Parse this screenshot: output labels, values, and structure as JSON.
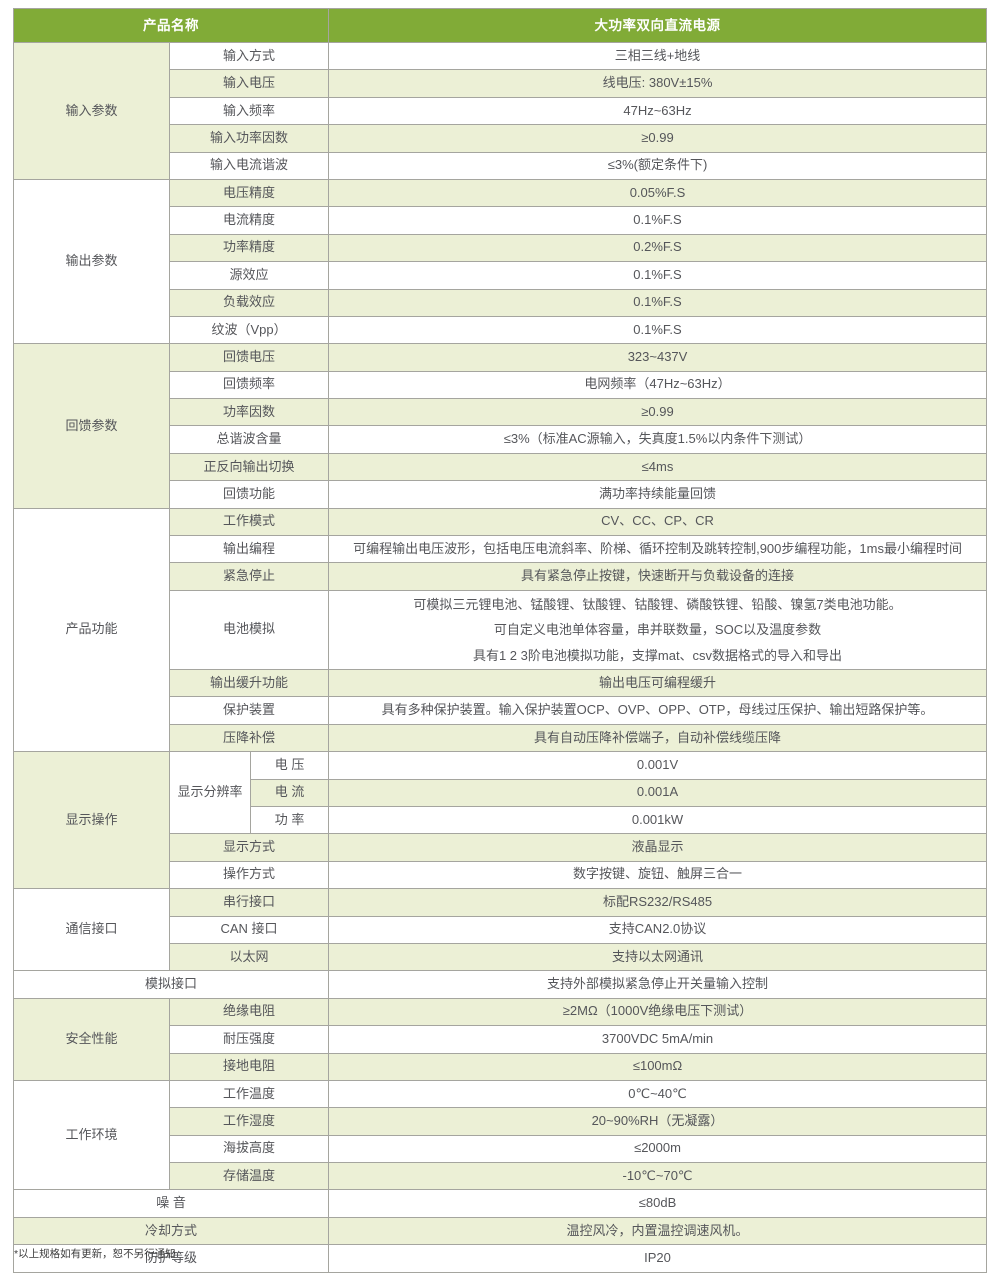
{
  "colors": {
    "header_bg": "#81AB37",
    "row_green": "#ECF0D6",
    "border": "#A5A59F",
    "text": "#55565A",
    "header_text": "#FFFFFF"
  },
  "footnote": "*以上规格如有更新，恕不另行通知",
  "table": {
    "header": {
      "name_label": "产品名称",
      "product_name": "大功率双向直流电源"
    },
    "rows": [
      {
        "group": "输入参数",
        "groupSpan": 5,
        "groupBg": "g",
        "label": "输入方式",
        "value": "三相三线+地线",
        "bg": "w"
      },
      {
        "label": "输入电压",
        "value": "线电压: 380V±15%",
        "bg": "g"
      },
      {
        "label": "输入频率",
        "value": "47Hz~63Hz",
        "bg": "w"
      },
      {
        "label": "输入功率因数",
        "value": "≥0.99",
        "bg": "g"
      },
      {
        "label": "输入电流谐波",
        "value": "≤3%(额定条件下)",
        "bg": "w"
      },
      {
        "group": "输出参数",
        "groupSpan": 6,
        "groupBg": "w",
        "label": "电压精度",
        "value": "0.05%F.S",
        "bg": "g"
      },
      {
        "label": "电流精度",
        "value": "0.1%F.S",
        "bg": "w"
      },
      {
        "label": "功率精度",
        "value": "0.2%F.S",
        "bg": "g"
      },
      {
        "label": "源效应",
        "value": "0.1%F.S",
        "bg": "w"
      },
      {
        "label": "负载效应",
        "value": "0.1%F.S",
        "bg": "g"
      },
      {
        "label": "纹波（Vpp）",
        "value": "0.1%F.S",
        "bg": "w"
      },
      {
        "group": "回馈参数",
        "groupSpan": 6,
        "groupBg": "g",
        "label": "回馈电压",
        "value": "323~437V",
        "bg": "g"
      },
      {
        "label": "回馈频率",
        "value": "电网频率（47Hz~63Hz）",
        "bg": "w"
      },
      {
        "label": "功率因数",
        "value": "≥0.99",
        "bg": "g"
      },
      {
        "label": "总谐波含量",
        "value": "≤3%（标准AC源输入，失真度1.5%以内条件下测试）",
        "bg": "w"
      },
      {
        "label": "正反向输出切换",
        "value": "≤4ms",
        "bg": "g"
      },
      {
        "label": "回馈功能",
        "value": "满功率持续能量回馈",
        "bg": "w"
      },
      {
        "group": "产品功能",
        "groupSpan": 7,
        "groupBg": "w",
        "label": "工作模式",
        "value": "CV、CC、CP、CR",
        "bg": "g"
      },
      {
        "label": "输出编程",
        "value": "可编程输出电压波形，包括电压电流斜率、阶梯、循环控制及跳转控制,900步编程功能，1ms最小编程时间",
        "bg": "w"
      },
      {
        "label": "紧急停止",
        "value": "具有紧急停止按键，快速断开与负载设备的连接",
        "bg": "g"
      },
      {
        "label": "电池模拟",
        "value": [
          "可模拟三元锂电池、锰酸锂、钛酸锂、钴酸锂、磷酸铁锂、铅酸、镍氢7类电池功能。",
          "可自定义电池单体容量，串并联数量，SOC以及温度参数",
          "具有1 2 3阶电池模拟功能，支撑mat、csv数据格式的导入和导出"
        ],
        "bg": "w"
      },
      {
        "label": "输出缓升功能",
        "value": "输出电压可编程缓升",
        "bg": "g"
      },
      {
        "label": "保护装置",
        "value": "具有多种保护装置。输入保护装置OCP、OVP、OPP、OTP，母线过压保护、输出短路保护等。",
        "bg": "w"
      },
      {
        "label": "压降补偿",
        "value": "具有自动压降补偿端子，自动补偿线缆压降",
        "bg": "g"
      },
      {
        "group": "显示操作",
        "groupSpan": 5,
        "groupBg": "g",
        "sub": "显示分辨率",
        "subSpan": 3,
        "label": "电  压",
        "value": "0.001V",
        "narrow": true,
        "bg": "w"
      },
      {
        "label": "电  流",
        "value": "0.001A",
        "narrow": true,
        "bg": "g"
      },
      {
        "label": "功  率",
        "value": "0.001kW",
        "narrow": true,
        "bg": "w"
      },
      {
        "label": "显示方式",
        "value": "液晶显示",
        "bg": "g"
      },
      {
        "label": "操作方式",
        "value": "数字按键、旋钮、触屏三合一",
        "bg": "w"
      },
      {
        "group": "通信接口",
        "groupSpan": 3,
        "groupBg": "w",
        "label": "串行接口",
        "value": "标配RS232/RS485",
        "bg": "g"
      },
      {
        "label": "CAN 接口",
        "value": "支持CAN2.0协议",
        "bg": "w"
      },
      {
        "label": "以太网",
        "value": "支持以太网通讯",
        "bg": "g"
      },
      {
        "wide": true,
        "label": "模拟接口",
        "value": "支持外部模拟紧急停止开关量输入控制",
        "bg": "w"
      },
      {
        "group": "安全性能",
        "groupSpan": 3,
        "groupBg": "g",
        "label": "绝缘电阻",
        "value": "≥2MΩ（1000V绝缘电压下测试）",
        "bg": "g"
      },
      {
        "label": "耐压强度",
        "value": "3700VDC 5mA/min",
        "bg": "w"
      },
      {
        "label": "接地电阻",
        "value": "≤100mΩ",
        "bg": "g"
      },
      {
        "group": "工作环境",
        "groupSpan": 4,
        "groupBg": "w",
        "label": "工作温度",
        "value": "0℃~40℃",
        "bg": "w"
      },
      {
        "label": "工作湿度",
        "value": "20~90%RH（无凝露）",
        "bg": "g"
      },
      {
        "label": "海拔高度",
        "value": "≤2000m",
        "bg": "w"
      },
      {
        "label": "存储温度",
        "value": "-10℃~70℃",
        "bg": "g"
      },
      {
        "wide": true,
        "label": "噪  音",
        "value": "≤80dB",
        "bg": "w"
      },
      {
        "wide": true,
        "label": "冷却方式",
        "value": "温控风冷，内置温控调速风机。",
        "bg": "g"
      },
      {
        "wide": true,
        "label": "防护等级",
        "value": "IP20",
        "bg": "w"
      }
    ]
  }
}
